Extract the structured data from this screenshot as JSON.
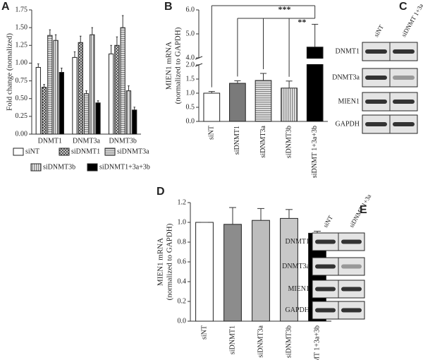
{
  "chart_data": [
    {
      "type": "bar",
      "panel": "A",
      "y_label": "Fold change (nomalized)",
      "categories": [
        "DNMT1",
        "DNMT3a",
        "DNMT3b"
      ],
      "series": [
        {
          "name": "siNT",
          "color": "#ffffff",
          "pattern": "none",
          "values": [
            0.94,
            1.08,
            1.13
          ],
          "errors": [
            0.05,
            0.08,
            0.12
          ]
        },
        {
          "name": "siDNMT1",
          "color": "#8a8a8a",
          "pattern": "checker",
          "values": [
            0.66,
            1.29,
            1.25
          ],
          "errors": [
            0.04,
            0.09,
            0.12
          ]
        },
        {
          "name": "siDNMT3a",
          "color": "#bdbdbd",
          "pattern": "hstripe",
          "values": [
            1.39,
            0.57,
            1.5
          ],
          "errors": [
            0.08,
            0.04,
            0.17
          ]
        },
        {
          "name": "siDNMT3b",
          "color": "#d6d6d6",
          "pattern": "vstripe",
          "values": [
            1.32,
            1.4,
            0.61
          ],
          "errors": [
            0.08,
            0.1,
            0.07
          ]
        },
        {
          "name": "siDNMT1+3a+3b",
          "color": "#000000",
          "pattern": "none",
          "values": [
            0.87,
            0.44,
            0.34
          ],
          "errors": [
            0.06,
            0.03,
            0.04
          ]
        }
      ],
      "ylim": [
        0,
        1.75
      ],
      "yticks": [
        {
          "value": 0,
          "label": "0.00"
        },
        0.25,
        {
          "value": 0.5,
          "label": "0.50"
        },
        0.75,
        {
          "value": 1,
          "label": "1.00"
        },
        1.25,
        {
          "value": 1.5,
          "label": "1.50"
        },
        1.75
      ]
    },
    {
      "type": "bar",
      "panel": "B",
      "y_label": [
        "MIEN1 mRNA",
        "(normalized to GAPDH)"
      ],
      "categories": [
        "siNT",
        "siDNMT1",
        "siDNMT3a",
        "siDNMT3b",
        "siDNMT 1+3a+3b"
      ],
      "values": [
        1.0,
        1.35,
        1.45,
        1.18,
        4.45
      ],
      "errors": [
        0.06,
        0.09,
        0.25,
        0.25,
        0.95
      ],
      "colors": [
        "#ffffff",
        "#7a7a7a",
        "#bdbdbd",
        "#cfcfcf",
        "#000000"
      ],
      "patterns": [
        "none",
        "none",
        "hstripe",
        "vstripe",
        "none"
      ],
      "annotations": [
        "***",
        "**"
      ],
      "ylim": [
        0,
        6
      ],
      "ybreak": [
        2,
        4
      ],
      "yticks": [
        {
          "value": 0,
          "label": "0.0"
        },
        0.5,
        {
          "value": 1,
          "label": "1.0"
        },
        1.5,
        {
          "value": 2,
          "label": "2.0"
        },
        {
          "value": 4,
          "label": "4.0"
        },
        {
          "value": 5,
          "label": "5.0"
        },
        {
          "value": 6,
          "label": "6.0"
        }
      ]
    },
    {
      "type": "blot",
      "panel": "C",
      "columns": [
        "siNT",
        "siDNMT 1+3a"
      ],
      "rows": [
        "DNMT1",
        "DNMT3a",
        "MIEN1",
        "GAPDH"
      ]
    },
    {
      "type": "bar",
      "panel": "D",
      "y_label": [
        "MIEN1 mRNA",
        "(normalized to GAPDH)"
      ],
      "categories": [
        "siNT",
        "siDNMT1",
        "siDNMT3a",
        "siDNMT3b",
        "siDNMT 1+3a+3b"
      ],
      "values": [
        1.0,
        0.98,
        1.02,
        1.04,
        0.89
      ],
      "errors": [
        0,
        0.17,
        0.12,
        0.09,
        0.02
      ],
      "colors": [
        "#ffffff",
        "#8c8c8c",
        "#bdbdbd",
        "#c8c8c8",
        "#000000"
      ],
      "patterns": [
        "none",
        "none",
        "none",
        "none",
        "none"
      ],
      "ylim": [
        0,
        1.2
      ],
      "yticks": [
        {
          "value": 0,
          "label": "0.0"
        },
        0.2,
        0.4,
        0.6,
        0.8,
        {
          "value": 1,
          "label": "1.0"
        },
        1.2
      ]
    },
    {
      "type": "blot",
      "panel": "E",
      "columns": [
        "siNT",
        "siDNMT 1+3a"
      ],
      "rows": [
        "DNMT1",
        "DNMT3a",
        "MIEN1",
        "GAPDH"
      ]
    }
  ]
}
